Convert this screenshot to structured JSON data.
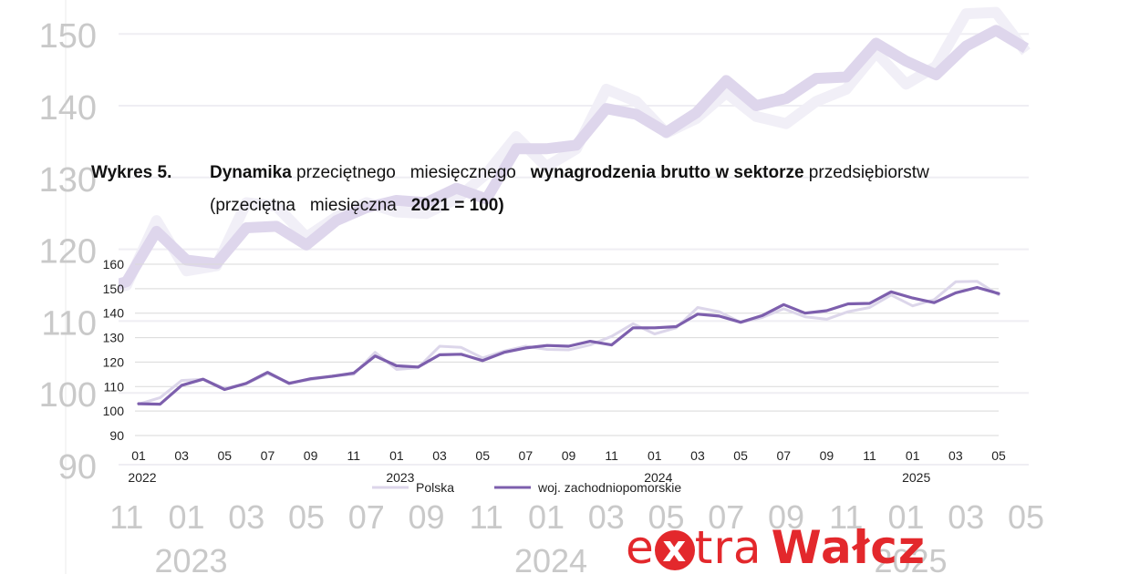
{
  "title": {
    "label": "Wykres 5.",
    "line1": [
      {
        "text": "Dynamika",
        "bold": true
      },
      {
        "text": " przeciętnego   miesięcznego   ",
        "bold": false
      },
      {
        "text": "wynagrodzenia brutto w sektorze",
        "bold": true
      },
      {
        "text": " przedsiębiorstw",
        "bold": false
      }
    ],
    "line2": [
      {
        "text": "(przeciętna   miesięczna   ",
        "bold": false
      },
      {
        "text": "2021 = 100)",
        "bold": true
      }
    ]
  },
  "logo": {
    "part1": "e",
    "x": "x",
    "part2": "tra",
    "part3": "Wałcz"
  },
  "colors": {
    "polska": "#dcd6ea",
    "zachodniopomorskie": "#7d5fad",
    "grid": "#d9d9d9",
    "logo": "#e3282c"
  },
  "chart_data": {
    "type": "line",
    "ylim": [
      90,
      160
    ],
    "yticks": [
      90,
      100,
      110,
      120,
      130,
      140,
      150,
      160
    ],
    "x_tick_labels": [
      {
        "i": 0,
        "month": "01",
        "year": "2022"
      },
      {
        "i": 2,
        "month": "03"
      },
      {
        "i": 4,
        "month": "05"
      },
      {
        "i": 6,
        "month": "07"
      },
      {
        "i": 8,
        "month": "09"
      },
      {
        "i": 10,
        "month": "11"
      },
      {
        "i": 12,
        "month": "01",
        "year": "2023"
      },
      {
        "i": 14,
        "month": "03"
      },
      {
        "i": 16,
        "month": "05"
      },
      {
        "i": 18,
        "month": "07"
      },
      {
        "i": 20,
        "month": "09"
      },
      {
        "i": 22,
        "month": "11"
      },
      {
        "i": 24,
        "month": "01",
        "year": "2024"
      },
      {
        "i": 26,
        "month": "03"
      },
      {
        "i": 28,
        "month": "05"
      },
      {
        "i": 30,
        "month": "07"
      },
      {
        "i": 32,
        "month": "09"
      },
      {
        "i": 34,
        "month": "11"
      },
      {
        "i": 36,
        "month": "01",
        "year": "2025"
      },
      {
        "i": 38,
        "month": "03"
      },
      {
        "i": 40,
        "month": "05"
      }
    ],
    "legend_position": "bottom",
    "series": [
      {
        "name": "Polska",
        "color": "#dcd6ea",
        "values": [
          102.8,
          105.5,
          112.5,
          113.0,
          109.2,
          111.2,
          115.3,
          111.6,
          112.8,
          114.3,
          115.0,
          124.0,
          117.0,
          117.7,
          126.5,
          126.0,
          121.7,
          124.5,
          126.5,
          125.2,
          125.0,
          127.0,
          130.5,
          135.7,
          131.5,
          134.0,
          142.3,
          140.6,
          136.2,
          138.2,
          141.8,
          138.5,
          137.5,
          140.6,
          142.3,
          147.4,
          143.0,
          145.5,
          152.8,
          153.0,
          147.5
        ]
      },
      {
        "name": "woj. zachodniopomorskie",
        "color": "#7d5fad",
        "values": [
          103.0,
          102.8,
          110.5,
          113.0,
          108.8,
          111.3,
          115.8,
          111.3,
          113.2,
          114.2,
          115.5,
          122.5,
          118.5,
          118.0,
          123.0,
          123.2,
          120.6,
          124.0,
          125.8,
          126.8,
          126.5,
          128.5,
          127.0,
          134.0,
          134.0,
          134.5,
          139.6,
          138.8,
          136.3,
          139.0,
          143.5,
          140.0,
          141.0,
          143.8,
          144.0,
          148.7,
          146.2,
          144.3,
          148.3,
          150.5,
          148.0
        ]
      }
    ]
  }
}
